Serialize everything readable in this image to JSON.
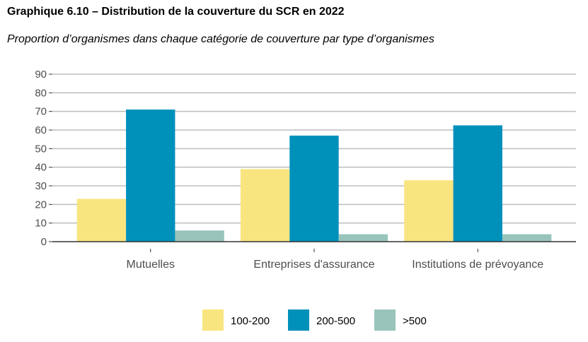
{
  "chart_data": {
    "type": "bar",
    "title": "Graphique 6.10 – Distribution de la couverture du SCR en 2022",
    "subtitle": "Proportion d’organismes dans chaque catégorie de couverture par type d’organismes",
    "categories": [
      "Mutuelles",
      "Entreprises d'assurance",
      "Institutions de prévoyance"
    ],
    "series": [
      {
        "name": "100-200",
        "color": "#f9e57f",
        "values": [
          23,
          39,
          33
        ]
      },
      {
        "name": "200-500",
        "color": "#0091bb",
        "values": [
          71,
          57,
          62.5
        ]
      },
      {
        "name": ">500",
        "color": "#98c4bc",
        "values": [
          6,
          4,
          4
        ]
      }
    ],
    "yticks": [
      "0",
      "10",
      "20",
      "30",
      "40",
      "50",
      "60",
      "70",
      "80",
      "90"
    ],
    "ylim": [
      0,
      90
    ],
    "grid": true,
    "legend_position": "bottom",
    "xlabel": "",
    "ylabel": ""
  }
}
